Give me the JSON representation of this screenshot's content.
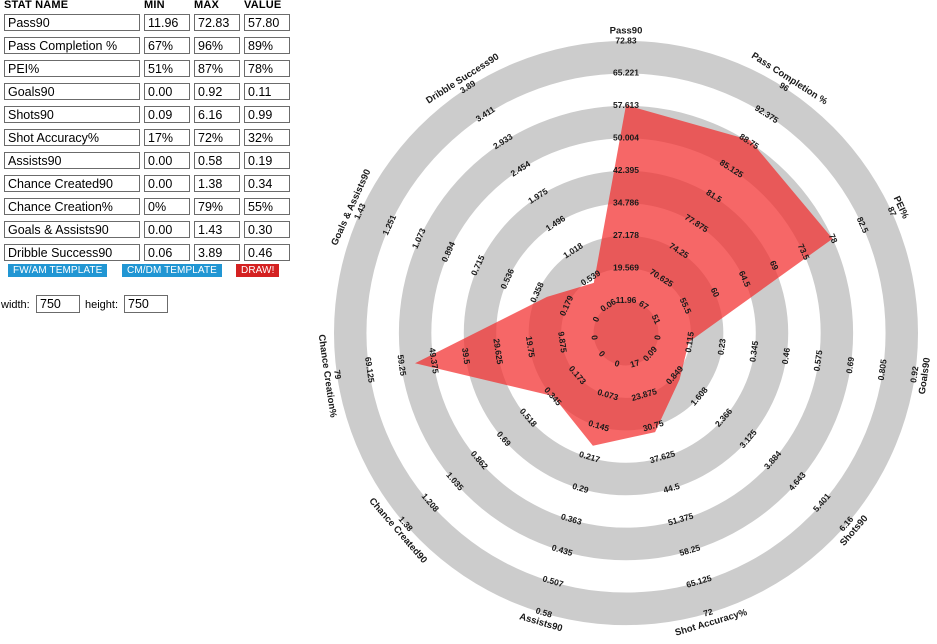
{
  "table": {
    "headers": {
      "name": "STAT NAME",
      "min": "MIN",
      "max": "MAX",
      "value": "VALUE"
    },
    "rows": [
      {
        "name": "Pass90",
        "min": "11.96",
        "max": "72.83",
        "value": "57.80"
      },
      {
        "name": "Pass Completion %",
        "min": "67%",
        "max": "96%",
        "value": "89%"
      },
      {
        "name": "PEI%",
        "min": "51%",
        "max": "87%",
        "value": "78%"
      },
      {
        "name": "Goals90",
        "min": "0.00",
        "max": "0.92",
        "value": "0.11"
      },
      {
        "name": "Shots90",
        "min": "0.09",
        "max": "6.16",
        "value": "0.99"
      },
      {
        "name": "Shot Accuracy%",
        "min": "17%",
        "max": "72%",
        "value": "32%"
      },
      {
        "name": "Assists90",
        "min": "0.00",
        "max": "0.58",
        "value": "0.19"
      },
      {
        "name": "Chance Created90",
        "min": "0.00",
        "max": "1.38",
        "value": "0.34"
      },
      {
        "name": "Chance Creation%",
        "min": "0%",
        "max": "79%",
        "value": "55%"
      },
      {
        "name": "Goals & Assists90",
        "min": "0.00",
        "max": "1.43",
        "value": "0.30"
      },
      {
        "name": "Dribble Success90",
        "min": "0.06",
        "max": "3.89",
        "value": "0.46"
      }
    ]
  },
  "buttons": {
    "fw_am": "FW/AM TEMPLATE",
    "cm_dm": "CM/DM TEMPLATE",
    "draw": "DRAW!"
  },
  "dimensions": {
    "width_label": "width:",
    "width_value": "750",
    "height_label": "height:",
    "height_value": "750"
  },
  "colors": {
    "ring": "#cccccc",
    "shape": "#f22c2c",
    "button_blue": "#2196d3",
    "button_red": "#d42121"
  },
  "chart_data": {
    "type": "radar",
    "axes": [
      {
        "label": "Pass90",
        "min": 11.96,
        "max": 72.83,
        "value": 57.8,
        "ticks": [
          "11.96",
          "19.569",
          "27.178",
          "34.786",
          "42.395",
          "50.004",
          "57.613",
          "65.221",
          "72.83"
        ]
      },
      {
        "label": "Pass Completion %",
        "min": 67,
        "max": 96,
        "value": 89,
        "ticks": [
          "67",
          "70.625",
          "74.25",
          "77.875",
          "81.5",
          "85.125",
          "88.75",
          "92.375",
          "96"
        ]
      },
      {
        "label": "PEI%",
        "min": 51,
        "max": 87,
        "value": 78,
        "ticks": [
          "51",
          "55.5",
          "60",
          "64.5",
          "69",
          "73.5",
          "78",
          "82.5",
          "87"
        ]
      },
      {
        "label": "Goals90",
        "min": 0,
        "max": 0.92,
        "value": 0.11,
        "ticks": [
          "0",
          "0.115",
          "0.23",
          "0.345",
          "0.46",
          "0.575",
          "0.69",
          "0.805",
          "0.92"
        ]
      },
      {
        "label": "Shots90",
        "min": 0.09,
        "max": 6.16,
        "value": 0.99,
        "ticks": [
          "0.09",
          "0.849",
          "1.608",
          "2.366",
          "3.125",
          "3.884",
          "4.643",
          "5.401",
          "6.16"
        ]
      },
      {
        "label": "Shot Accuracy%",
        "min": 17,
        "max": 72,
        "value": 32,
        "ticks": [
          "17",
          "23.875",
          "30.75",
          "37.625",
          "44.5",
          "51.375",
          "58.25",
          "65.125",
          "72"
        ]
      },
      {
        "label": "Assists90",
        "min": 0,
        "max": 0.58,
        "value": 0.19,
        "ticks": [
          "0",
          "0.073",
          "0.145",
          "0.217",
          "0.29",
          "0.363",
          "0.435",
          "0.507",
          "0.58"
        ]
      },
      {
        "label": "Chance Created90",
        "min": 0,
        "max": 1.38,
        "value": 0.34,
        "ticks": [
          "0",
          "0.173",
          "0.345",
          "0.518",
          "0.69",
          "0.862",
          "1.035",
          "1.208",
          "1.38"
        ]
      },
      {
        "label": "Chance Creation%",
        "min": 0,
        "max": 79,
        "value": 55,
        "ticks": [
          "0",
          "9.875",
          "19.75",
          "29.625",
          "39.5",
          "49.375",
          "59.25",
          "69.125",
          "79"
        ]
      },
      {
        "label": "Goals & Assists90",
        "min": 0,
        "max": 1.43,
        "value": 0.3,
        "ticks": [
          "0",
          "0.179",
          "0.358",
          "0.536",
          "0.715",
          "0.894",
          "1.073",
          "1.251",
          "1.43"
        ]
      },
      {
        "label": "Dribble Success90",
        "min": 0.06,
        "max": 3.89,
        "value": 0.46,
        "ticks": [
          "0.06",
          "0.539",
          "1.018",
          "1.496",
          "1.975",
          "2.454",
          "2.933",
          "3.411",
          "3.89"
        ]
      }
    ],
    "ring_count": 5
  }
}
